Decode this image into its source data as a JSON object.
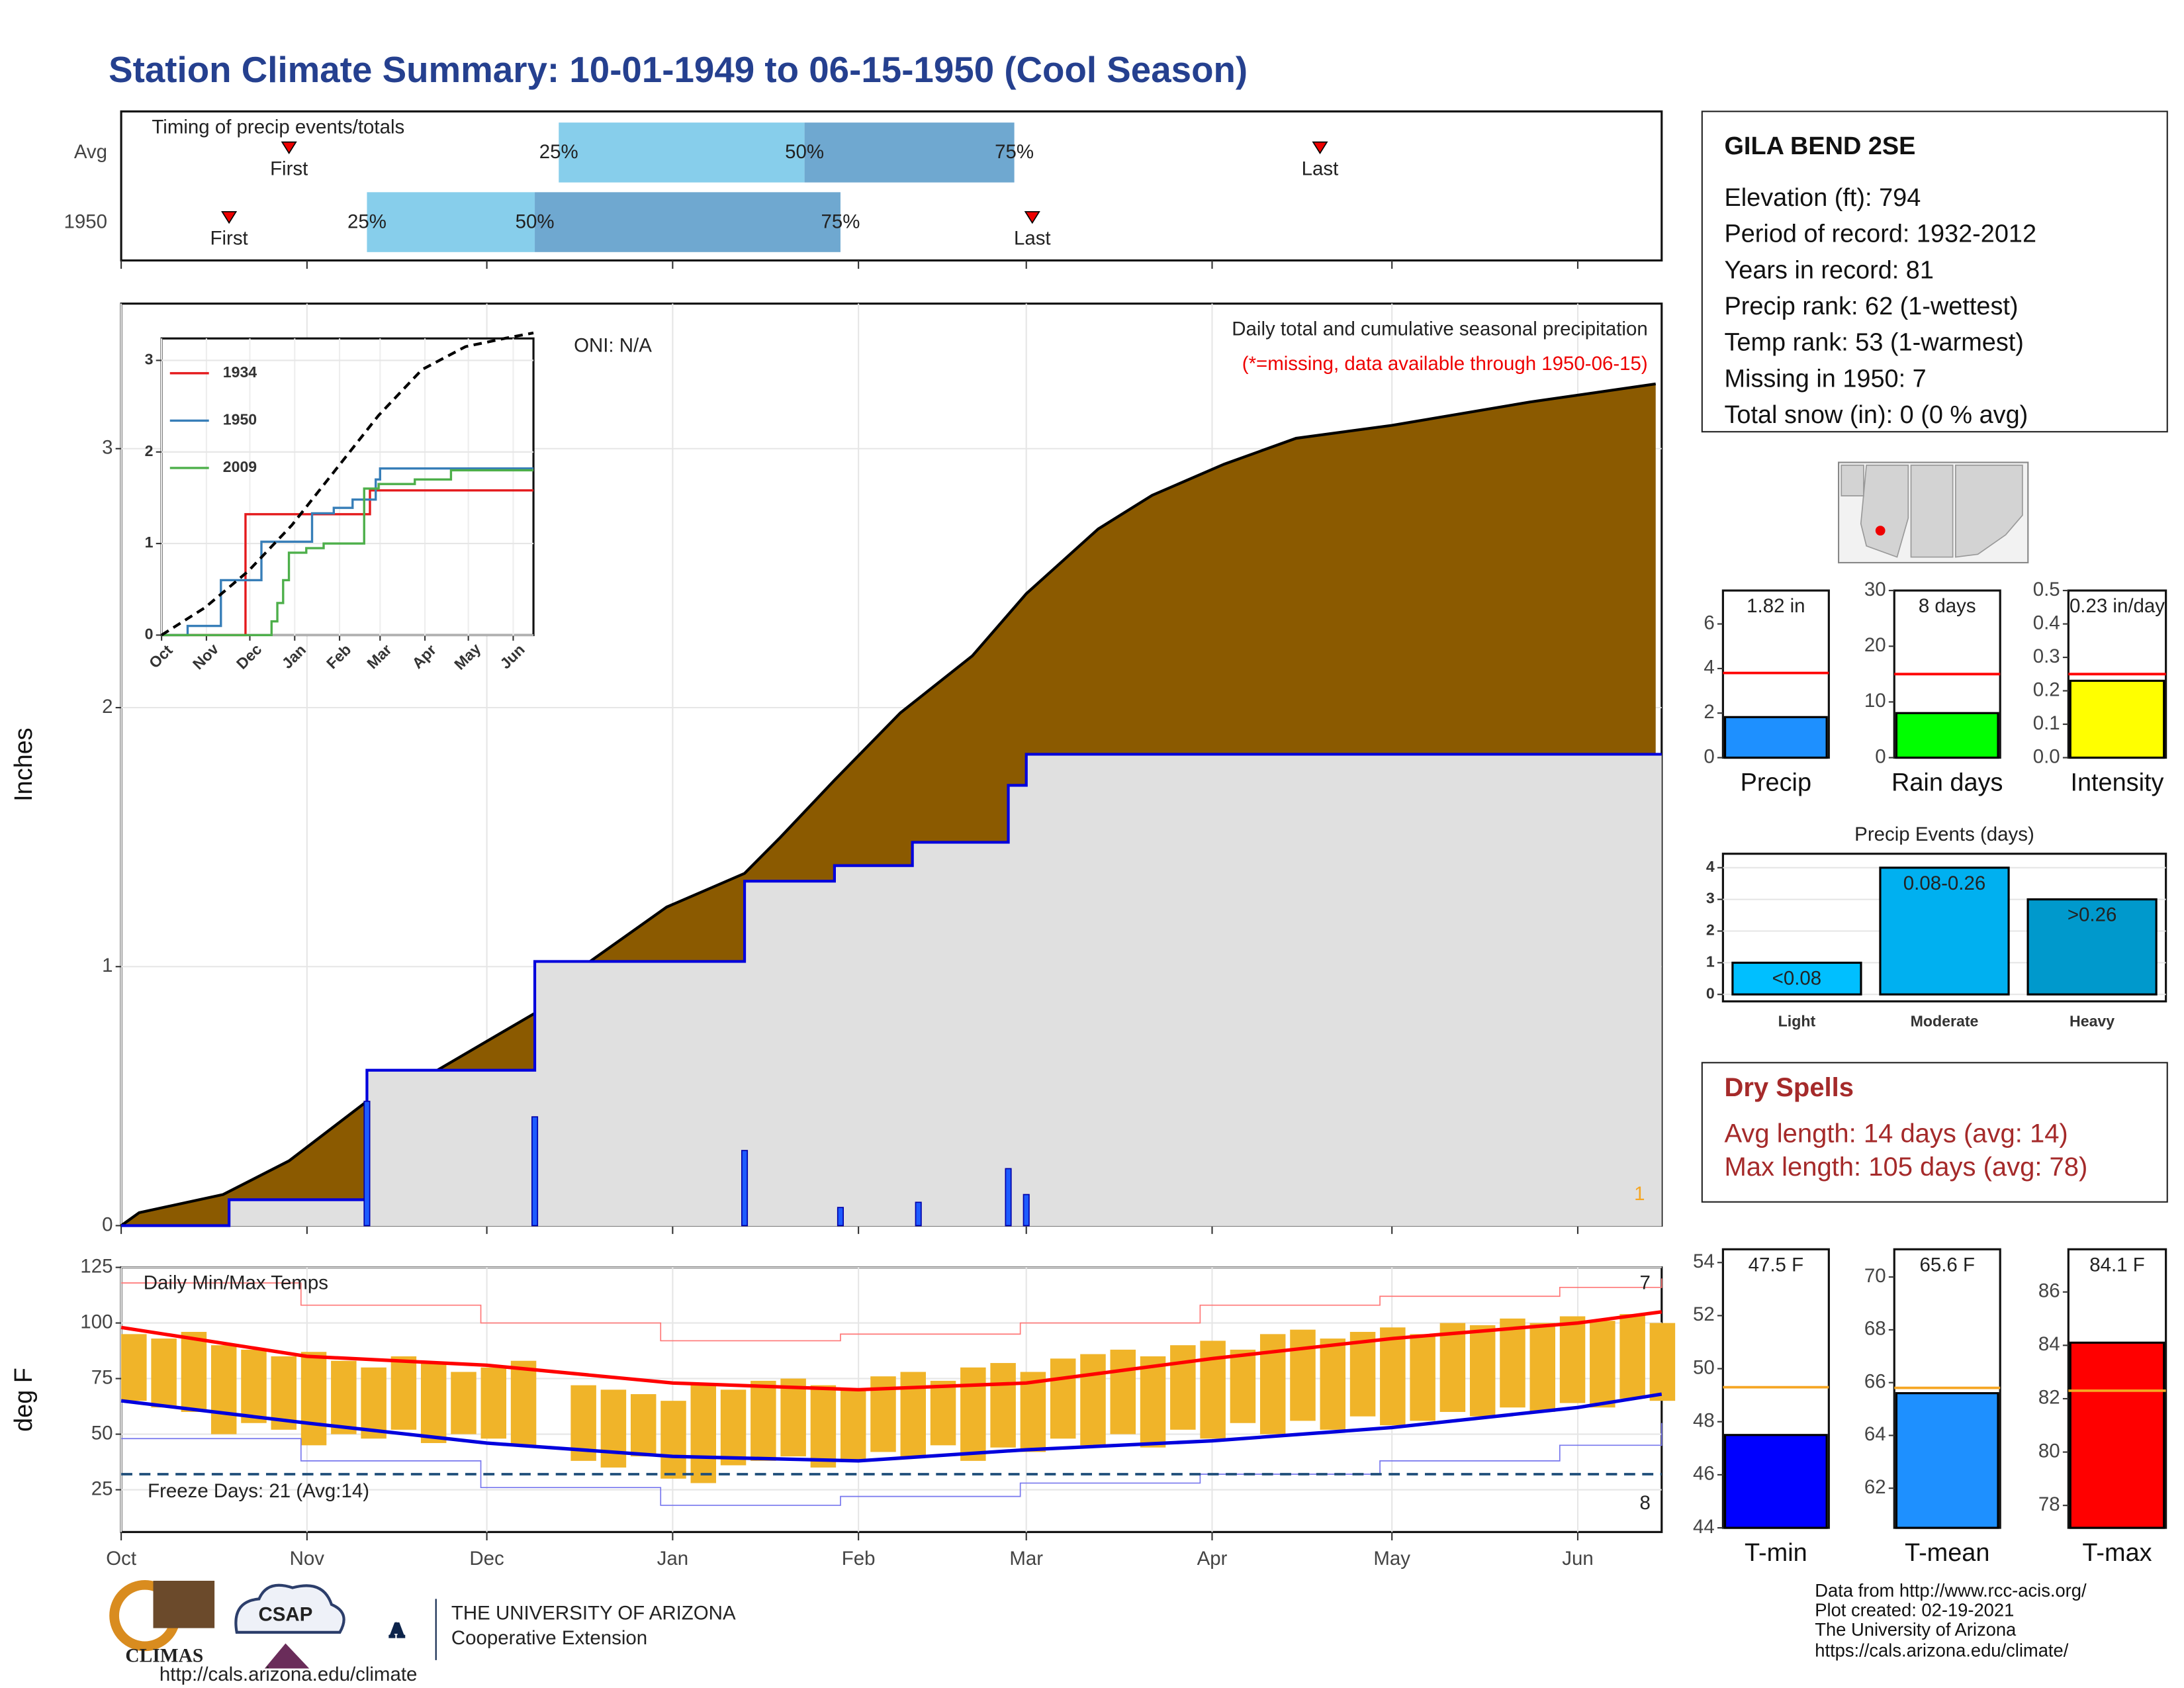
{
  "title": "Station Climate Summary: 10-01-1949 to 06-15-1950 (Cool Season)",
  "chart_data": [
    {
      "type": "range",
      "title": "Timing of precip events/totals",
      "xlim": [
        0,
        257
      ],
      "xticks": [
        0,
        31,
        61,
        92,
        123,
        151,
        182,
        212,
        243
      ],
      "colors": [
        "#87ceeb",
        "#6fa8d0"
      ],
      "marker_color": "#ee0000",
      "quantile_labels": [
        "25%",
        "50%",
        "75%"
      ],
      "marker_labels": [
        "First",
        "Last"
      ],
      "rows": [
        {
          "name": "Avg",
          "first": 28,
          "q25": 73,
          "q50": 114,
          "q75": 149,
          "last": 200
        },
        {
          "name": "1950",
          "first": 18,
          "q25": 41,
          "q50": 69,
          "q75": 120,
          "last": 152
        }
      ]
    },
    {
      "type": "area",
      "ylabel": "Inches",
      "xlim": [
        0,
        257
      ],
      "ylim": [
        0,
        3.56
      ],
      "xticks": [
        0,
        31,
        61,
        92,
        123,
        151,
        182,
        212,
        243
      ],
      "yticks": [
        0,
        1,
        2,
        3
      ],
      "grid": true,
      "series": [
        {
          "color": "#000000",
          "fill": "#8b5a00",
          "step": false,
          "x": [
            0,
            3,
            17,
            28,
            41,
            52,
            69,
            77,
            91,
            104,
            110,
            119,
            130,
            142,
            151,
            163,
            172,
            184,
            196,
            212,
            235,
            256
          ],
          "values": [
            0,
            0.05,
            0.12,
            0.25,
            0.48,
            0.59,
            0.82,
            1.0,
            1.23,
            1.36,
            1.5,
            1.72,
            1.98,
            2.2,
            2.44,
            2.69,
            2.82,
            2.94,
            3.04,
            3.09,
            3.18,
            3.25
          ]
        },
        {
          "color": "#0000dd",
          "fill": "#e0e0e0",
          "step": true,
          "x": [
            0,
            18,
            41,
            69,
            104,
            119,
            132,
            148,
            151,
            257
          ],
          "values": [
            0,
            0.1,
            0.6,
            1.02,
            1.33,
            1.39,
            1.48,
            1.7,
            1.82,
            1.82
          ]
        }
      ],
      "bars": {
        "color": "#1e5bff",
        "x": [
          41,
          69,
          104,
          120,
          133,
          148,
          151
        ],
        "values": [
          0.48,
          0.42,
          0.29,
          0.07,
          0.09,
          0.22,
          0.12
        ]
      },
      "annotations": {
        "oni": "ONI: N/A",
        "subtitle": "Daily total and cumulative seasonal precipitation",
        "note": "(*=missing, data available through 1950-06-15)",
        "corner": "1"
      }
    },
    {
      "type": "line",
      "xlim": [
        0,
        257
      ],
      "ylim": [
        0,
        3.24
      ],
      "xticks": [
        {
          "value": 0,
          "label": "Oct"
        },
        {
          "value": 31,
          "label": "Nov"
        },
        {
          "value": 61,
          "label": "Dec"
        },
        {
          "value": 92,
          "label": "Jan"
        },
        {
          "value": 123,
          "label": "Feb"
        },
        {
          "value": 151,
          "label": "Mar"
        },
        {
          "value": 182,
          "label": "Apr"
        },
        {
          "value": 212,
          "label": "May"
        },
        {
          "value": 243,
          "label": "Jun"
        }
      ],
      "yticks": [
        0,
        1,
        2,
        3
      ],
      "grid": true,
      "series": [
        {
          "name": "1934",
          "color": "#e41a1c",
          "x": [
            0,
            58,
            144,
            257
          ],
          "values": [
            0,
            1.32,
            1.58,
            1.58
          ]
        },
        {
          "name": "1950",
          "color": "#377eb8",
          "x": [
            0,
            18,
            41,
            69,
            104,
            119,
            132,
            148,
            151,
            257
          ],
          "values": [
            0,
            0.1,
            0.6,
            1.02,
            1.33,
            1.39,
            1.48,
            1.7,
            1.82,
            1.82
          ]
        },
        {
          "name": "2009",
          "color": "#4daf4a",
          "x": [
            0,
            76,
            80,
            84,
            88,
            100,
            112,
            140,
            150,
            175,
            200,
            257
          ],
          "values": [
            0,
            0.15,
            0.35,
            0.6,
            0.9,
            0.95,
            1.0,
            1.6,
            1.65,
            1.7,
            1.8,
            1.8
          ]
        },
        {
          "color": "#000000",
          "dash": true,
          "x": [
            0,
            30,
            60,
            90,
            120,
            150,
            180,
            210,
            240,
            257
          ],
          "values": [
            0,
            0.3,
            0.7,
            1.2,
            1.8,
            2.4,
            2.9,
            3.15,
            3.25,
            3.3
          ]
        }
      ]
    },
    {
      "type": "floating_bar",
      "ylabel": "deg F",
      "xlim": [
        0,
        257
      ],
      "ylim": [
        6,
        125
      ],
      "xticks": [
        {
          "value": 0,
          "label": "Oct"
        },
        {
          "value": 31,
          "label": "Nov"
        },
        {
          "value": 61,
          "label": "Dec"
        },
        {
          "value": 92,
          "label": "Jan"
        },
        {
          "value": 123,
          "label": "Feb"
        },
        {
          "value": 151,
          "label": "Mar"
        },
        {
          "value": 182,
          "label": "Apr"
        },
        {
          "value": 212,
          "label": "May"
        },
        {
          "value": 243,
          "label": "Jun"
        }
      ],
      "yticks": [
        25,
        50,
        75,
        100,
        125
      ],
      "grid": true,
      "color": "#f0b429",
      "bar_days": 5,
      "x": [
        0,
        5,
        10,
        15,
        20,
        25,
        30,
        35,
        40,
        45,
        50,
        55,
        60,
        65,
        70,
        75,
        80,
        85,
        90,
        95,
        100,
        105,
        110,
        115,
        120,
        125,
        130,
        135,
        140,
        145,
        150,
        155,
        160,
        165,
        170,
        175,
        180,
        185,
        190,
        195,
        200,
        205,
        210,
        215,
        220,
        225,
        230,
        235,
        240,
        245,
        250,
        255
      ],
      "max": [
        95,
        93,
        96,
        90,
        88,
        85,
        87,
        83,
        80,
        85,
        82,
        78,
        80,
        83,
        null,
        72,
        70,
        68,
        65,
        72,
        70,
        74,
        75,
        72,
        70,
        76,
        78,
        74,
        80,
        82,
        78,
        84,
        86,
        88,
        85,
        90,
        92,
        88,
        95,
        97,
        93,
        96,
        98,
        95,
        100,
        99,
        102,
        100,
        103,
        101,
        104,
        100
      ],
      "min": [
        65,
        62,
        60,
        50,
        55,
        52,
        45,
        50,
        48,
        52,
        46,
        50,
        48,
        45,
        null,
        38,
        35,
        40,
        30,
        28,
        36,
        38,
        40,
        35,
        38,
        42,
        40,
        45,
        38,
        44,
        42,
        48,
        45,
        50,
        44,
        52,
        48,
        55,
        50,
        56,
        52,
        58,
        54,
        56,
        60,
        58,
        62,
        60,
        64,
        62,
        66,
        65
      ],
      "normals": [
        {
          "color": "#ff0000",
          "x": [
            0,
            31,
            61,
            92,
            123,
            151,
            182,
            212,
            243,
            257
          ],
          "values": [
            98,
            85,
            81,
            73,
            70,
            73,
            84,
            93,
            100,
            105
          ]
        },
        {
          "color": "#0000dd",
          "x": [
            0,
            31,
            61,
            92,
            123,
            151,
            182,
            212,
            243,
            257
          ],
          "values": [
            65,
            55,
            46,
            40,
            38,
            43,
            47,
            53,
            62,
            68
          ]
        }
      ],
      "records": [
        {
          "color": "#ff7777",
          "x": [
            0,
            30,
            60,
            90,
            120,
            150,
            180,
            210,
            240,
            257
          ],
          "values": [
            118,
            108,
            100,
            92,
            95,
            100,
            108,
            112,
            116,
            120
          ]
        },
        {
          "color": "#7777ee",
          "x": [
            0,
            30,
            60,
            90,
            120,
            150,
            180,
            210,
            240,
            257
          ],
          "values": [
            48,
            38,
            26,
            18,
            22,
            28,
            32,
            38,
            45,
            55
          ]
        }
      ],
      "freeze": 32,
      "freeze_color": "#1f4e79",
      "annotations": {
        "title": "Daily Min/Max Temps",
        "freeze_days": "Freeze Days: 21 (Avg:14)",
        "high_count": "7",
        "low_count": "8"
      }
    },
    {
      "type": "bar",
      "categories": [
        "Precip"
      ],
      "values": [
        1.82
      ],
      "value_labels": [
        "1.82 in"
      ],
      "average": 3.8,
      "average_color": "#ff0000",
      "color": "#1e90ff",
      "ylim": [
        0,
        7.5
      ],
      "yticks": [
        0,
        2,
        4,
        6
      ]
    },
    {
      "type": "bar",
      "categories": [
        "Rain days"
      ],
      "values": [
        8
      ],
      "value_labels": [
        "8 days"
      ],
      "average": 15,
      "average_color": "#ff0000",
      "color": "#00ff00",
      "ylim": [
        0,
        30
      ],
      "yticks": [
        0,
        10,
        20,
        30
      ]
    },
    {
      "type": "bar",
      "categories": [
        "Intensity"
      ],
      "values": [
        0.23
      ],
      "value_labels": [
        "0.23 in/day"
      ],
      "average": 0.25,
      "average_color": "#ff0000",
      "color": "#ffff00",
      "ylim": [
        0,
        0.5
      ],
      "yticks": [
        {
          "value": 0,
          "label": "0.0"
        },
        0.1,
        0.2,
        0.3,
        0.4,
        0.5
      ]
    },
    {
      "type": "bar",
      "title": "Precip Events (days)",
      "categories": [
        "Light",
        "Moderate",
        "Heavy"
      ],
      "values": [
        1,
        4,
        3
      ],
      "bar_labels": [
        "<0.08",
        "0.08-0.26",
        ">0.26"
      ],
      "colors": [
        "#00bfff",
        "#00b0f0",
        "#0099cc"
      ],
      "ylim": [
        -0.22,
        4.44
      ],
      "yticks": [
        0,
        1,
        2,
        3,
        4
      ],
      "grid": true
    },
    {
      "type": "bar",
      "categories": [
        "T-min"
      ],
      "values": [
        47.5
      ],
      "value_labels": [
        "47.5 F"
      ],
      "average": 49.3,
      "average_color": "#f5a623",
      "color": "#0000ff",
      "ylim": [
        44,
        54.5
      ],
      "yticks": [
        44,
        46,
        48,
        50,
        52,
        54
      ]
    },
    {
      "type": "bar",
      "categories": [
        "T-mean"
      ],
      "values": [
        65.6
      ],
      "value_labels": [
        "65.6 F"
      ],
      "average": 65.8,
      "average_color": "#f5a623",
      "color": "#1e90ff",
      "ylim": [
        60.5,
        71.05
      ],
      "yticks": [
        62,
        64,
        66,
        68,
        70
      ]
    },
    {
      "type": "bar",
      "categories": [
        "T-max"
      ],
      "values": [
        84.1
      ],
      "value_labels": [
        "84.1 F"
      ],
      "average": 82.3,
      "average_color": "#f5a623",
      "color": "#ff0000",
      "ylim": [
        77.16,
        87.6
      ],
      "yticks": [
        78,
        80,
        82,
        84,
        86
      ]
    }
  ],
  "station": {
    "name": "GILA BEND 2SE",
    "lines": [
      "Elevation (ft): 794",
      "Period of record: 1932-2012",
      "Years in record: 81",
      "Precip rank: 62 (1-wettest)",
      "Temp rank: 53 (1-warmest)",
      "Missing in 1950: 7",
      "Total snow (in): 0 (0 % avg)"
    ]
  },
  "dry_spells": {
    "title": "Dry Spells",
    "lines": [
      "Avg length: 14 days (avg: 14)",
      "Max length: 105 days (avg: 78)"
    ]
  },
  "footer": [
    "Data from http://www.rcc-acis.org/",
    "Plot created: 02-19-2021",
    "The University of Arizona",
    "https://cals.arizona.edu/climate/"
  ],
  "logos": {
    "climas": "CLIMAS",
    "csap": "CSAP",
    "csap_url": "http://cals.arizona.edu/climate",
    "ua_mark": "A",
    "ua": "THE UNIVERSITY OF ARIZONA",
    "extension": "Cooperative Extension"
  }
}
